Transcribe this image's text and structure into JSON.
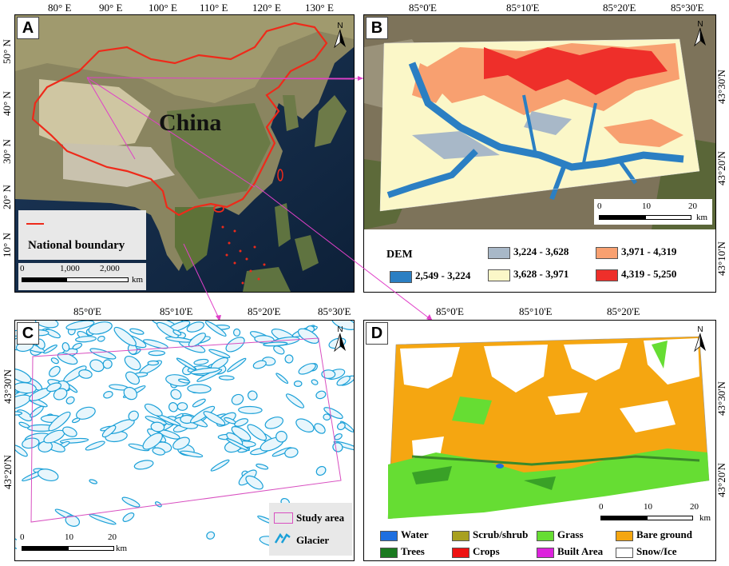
{
  "panelA": {
    "label": "A",
    "top_ticks": [
      "80° E",
      "90° E",
      "100° E",
      "110° E",
      "120° E",
      "130° E"
    ],
    "left_ticks": [
      "50° N",
      "40° N",
      "30° N",
      "20° N",
      "10° N"
    ],
    "country_label": "China",
    "legend_text": "National boundary",
    "scale": [
      "0",
      "1,000",
      "2,000",
      "km"
    ],
    "north": "N"
  },
  "panelB": {
    "label": "B",
    "top_ticks": [
      "85°0'E",
      "85°10'E",
      "85°20'E",
      "85°30'E"
    ],
    "right_ticks": [
      "43°30'N",
      "43°20'N",
      "43°10'N"
    ],
    "scale": [
      "0",
      "10",
      "20",
      "km"
    ],
    "north": "N",
    "dem_title": "DEM",
    "dem_classes": [
      {
        "range": "2,549 - 3,224",
        "color": "#2b7fc3"
      },
      {
        "range": "3,224 - 3,628",
        "color": "#a8b8c8"
      },
      {
        "range": "3,628 - 3,971",
        "color": "#fbf7c8"
      },
      {
        "range": "3,971 - 4,319",
        "color": "#f8a070"
      },
      {
        "range": "4,319 - 5,250",
        "color": "#ee2f2a"
      }
    ]
  },
  "panelC": {
    "label": "C",
    "top_ticks": [
      "85°0'E",
      "85°10'E",
      "85°20'E",
      "85°30'E"
    ],
    "left_ticks": [
      "43°30'N",
      "43°20'N"
    ],
    "scale": [
      "0",
      "10",
      "20",
      "km"
    ],
    "north": "N",
    "legend": [
      {
        "name": "Study area",
        "color": "#d84fc0"
      },
      {
        "name": "Glacier",
        "color": "#1aa0d8"
      }
    ]
  },
  "panelD": {
    "label": "D",
    "top_ticks": [
      "85°0'E",
      "85°10'E",
      "85°20'E"
    ],
    "right_ticks": [
      "43°30'N",
      "43°20'N"
    ],
    "scale": [
      "0",
      "10",
      "20",
      "km"
    ],
    "north": "N",
    "legend": [
      {
        "name": "Water",
        "color": "#1e6fe0"
      },
      {
        "name": "Scrub/shrub",
        "color": "#a8a020"
      },
      {
        "name": "Grass",
        "color": "#66dd33"
      },
      {
        "name": "Bare ground",
        "color": "#f5a611"
      },
      {
        "name": "Trees",
        "color": "#1a7a20"
      },
      {
        "name": "Crops",
        "color": "#ee1111"
      },
      {
        "name": "Built Area",
        "color": "#dd22dd"
      },
      {
        "name": "Snow/Ice",
        "color": "#ffffff"
      }
    ]
  }
}
